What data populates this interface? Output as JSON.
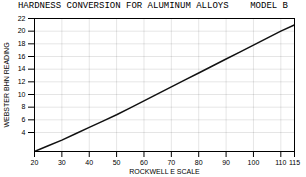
{
  "chart_data": {
    "type": "line",
    "title": "HARDNESS CONVERSION FOR ALUMINUM ALLOYS    MODEL B",
    "xlabel": "ROCKWELL E SCALE",
    "ylabel": "WEBSTER BHN READING",
    "x": [
      20,
      25,
      30,
      35,
      40,
      45,
      50,
      55,
      60,
      65,
      70,
      75,
      80,
      85,
      90,
      95,
      100,
      105,
      110,
      115
    ],
    "values": [
      1.0,
      1.9,
      2.8,
      3.8,
      4.8,
      5.8,
      6.8,
      7.9,
      9.0,
      10.1,
      11.2,
      12.3,
      13.4,
      14.5,
      15.6,
      16.7,
      17.8,
      18.9,
      20.0,
      21.0
    ],
    "color": "#111111",
    "xlim": [
      20,
      115
    ],
    "ylim": [
      1,
      22
    ],
    "xticks": [
      20,
      30,
      40,
      50,
      60,
      70,
      80,
      90,
      100,
      110,
      115
    ],
    "yticks": [
      4,
      6,
      8,
      10,
      12,
      14,
      16,
      18,
      20,
      22
    ],
    "grid": true
  }
}
